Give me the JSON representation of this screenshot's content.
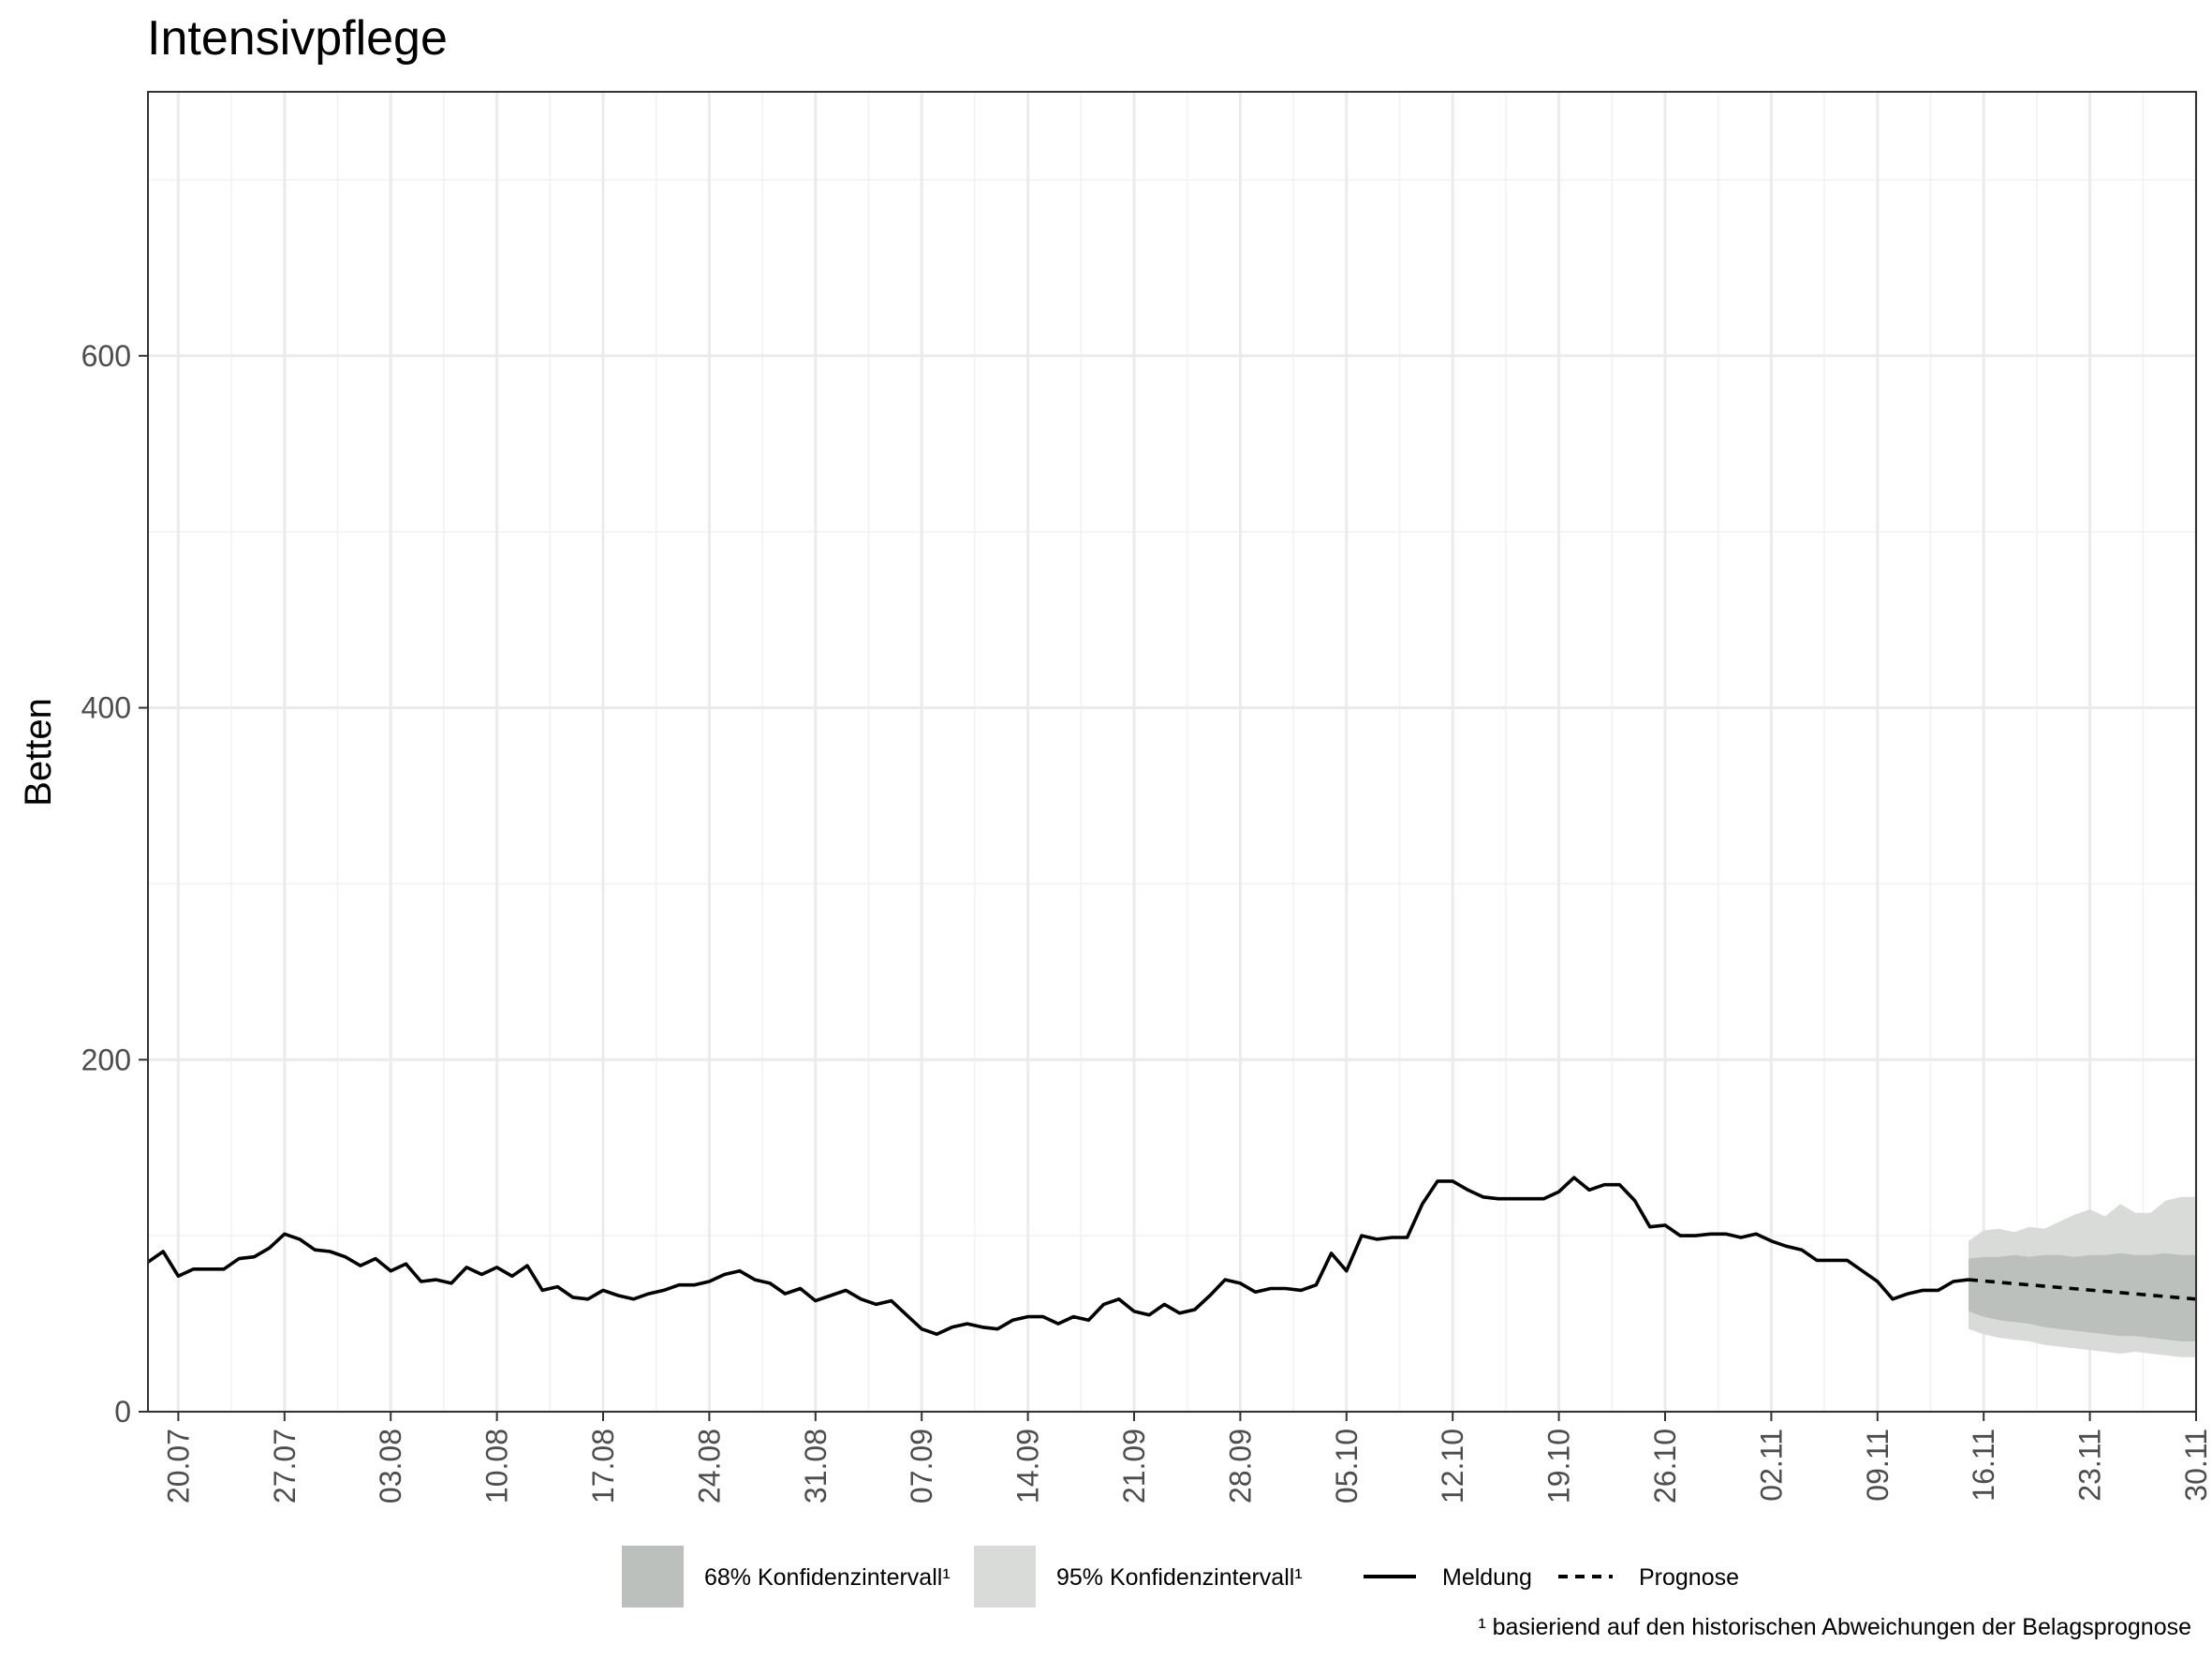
{
  "chart_data": {
    "type": "line",
    "title": "Intensivpflege",
    "xlabel": "",
    "ylabel": "Betten",
    "ylim": [
      0,
      750
    ],
    "xlim": [
      "2020-07-18",
      "2020-11-30"
    ],
    "y_ticks": [
      0,
      200,
      400,
      600
    ],
    "x_ticks": [
      {
        "date": "2020-07-20",
        "label": "20.07"
      },
      {
        "date": "2020-07-27",
        "label": "27.07"
      },
      {
        "date": "2020-08-03",
        "label": "03.08"
      },
      {
        "date": "2020-08-10",
        "label": "10.08"
      },
      {
        "date": "2020-08-17",
        "label": "17.08"
      },
      {
        "date": "2020-08-24",
        "label": "24.08"
      },
      {
        "date": "2020-08-31",
        "label": "31.08"
      },
      {
        "date": "2020-09-07",
        "label": "07.09"
      },
      {
        "date": "2020-09-14",
        "label": "14.09"
      },
      {
        "date": "2020-09-21",
        "label": "21.09"
      },
      {
        "date": "2020-09-28",
        "label": "28.09"
      },
      {
        "date": "2020-10-05",
        "label": "05.10"
      },
      {
        "date": "2020-10-12",
        "label": "12.10"
      },
      {
        "date": "2020-10-19",
        "label": "19.10"
      },
      {
        "date": "2020-10-26",
        "label": "26.10"
      },
      {
        "date": "2020-11-02",
        "label": "02.11"
      },
      {
        "date": "2020-11-09",
        "label": "09.11"
      },
      {
        "date": "2020-11-16",
        "label": "16.11"
      },
      {
        "date": "2020-11-23",
        "label": "23.11"
      },
      {
        "date": "2020-11-30",
        "label": "30.11"
      }
    ],
    "grid": true,
    "legend_position": "bottom",
    "colors": {
      "ci68": "#bbc0bc",
      "ci95": "#d9dbd9",
      "line": "#000000",
      "grid_major": "#ebebeb",
      "grid_minor": "#f2f2f2"
    },
    "legend": {
      "ci68": "68% Konfidenzintervall¹",
      "ci95": "95% Konfidenzintervall¹",
      "meldung": "Meldung",
      "prognose": "Prognose"
    },
    "footnote": "¹ basieriend auf den historischen Abweichungen der Belagsprognose",
    "series": [
      {
        "name": "Meldung",
        "x": [
          "2020-07-18",
          "2020-07-19",
          "2020-07-20",
          "2020-07-21",
          "2020-07-22",
          "2020-07-23",
          "2020-07-24",
          "2020-07-25",
          "2020-07-26",
          "2020-07-27",
          "2020-07-28",
          "2020-07-29",
          "2020-07-30",
          "2020-07-31",
          "2020-08-01",
          "2020-08-02",
          "2020-08-03",
          "2020-08-04",
          "2020-08-05",
          "2020-08-06",
          "2020-08-07",
          "2020-08-08",
          "2020-08-09",
          "2020-08-10",
          "2020-08-11",
          "2020-08-12",
          "2020-08-13",
          "2020-08-14",
          "2020-08-15",
          "2020-08-16",
          "2020-08-17",
          "2020-08-18",
          "2020-08-19",
          "2020-08-20",
          "2020-08-21",
          "2020-08-22",
          "2020-08-23",
          "2020-08-24",
          "2020-08-25",
          "2020-08-26",
          "2020-08-27",
          "2020-08-28",
          "2020-08-29",
          "2020-08-30",
          "2020-08-31",
          "2020-09-01",
          "2020-09-02",
          "2020-09-03",
          "2020-09-04",
          "2020-09-05",
          "2020-09-06",
          "2020-09-07",
          "2020-09-08",
          "2020-09-09",
          "2020-09-10",
          "2020-09-11",
          "2020-09-12",
          "2020-09-13",
          "2020-09-14",
          "2020-09-15",
          "2020-09-16",
          "2020-09-17",
          "2020-09-18",
          "2020-09-19",
          "2020-09-20",
          "2020-09-21",
          "2020-09-22",
          "2020-09-23",
          "2020-09-24",
          "2020-09-25",
          "2020-09-26",
          "2020-09-27",
          "2020-09-28",
          "2020-09-29",
          "2020-09-30",
          "2020-10-01",
          "2020-10-02",
          "2020-10-03",
          "2020-10-04",
          "2020-10-05",
          "2020-10-06",
          "2020-10-07",
          "2020-10-08",
          "2020-10-09",
          "2020-10-10",
          "2020-10-11",
          "2020-10-12",
          "2020-10-13",
          "2020-10-14",
          "2020-10-15",
          "2020-10-16",
          "2020-10-17",
          "2020-10-18",
          "2020-10-19",
          "2020-10-20",
          "2020-10-21",
          "2020-10-22",
          "2020-10-23",
          "2020-10-24",
          "2020-10-25",
          "2020-10-26",
          "2020-10-27",
          "2020-10-28",
          "2020-10-29",
          "2020-10-30",
          "2020-10-31",
          "2020-11-01",
          "2020-11-02",
          "2020-11-03",
          "2020-11-04",
          "2020-11-05",
          "2020-11-06",
          "2020-11-07",
          "2020-11-08",
          "2020-11-09",
          "2020-11-10",
          "2020-11-11",
          "2020-11-12",
          "2020-11-13",
          "2020-11-14",
          "2020-11-15"
        ],
        "values": [
          85,
          91,
          77,
          81,
          81,
          81,
          87,
          88,
          93,
          101,
          98,
          92,
          91,
          88,
          83,
          87,
          80,
          84,
          74,
          75,
          73,
          82,
          78,
          82,
          77,
          83,
          69,
          71,
          65,
          64,
          69,
          66,
          64,
          67,
          69,
          72,
          72,
          74,
          78,
          80,
          75,
          73,
          67,
          70,
          63,
          66,
          69,
          64,
          61,
          63,
          55,
          47,
          44,
          48,
          50,
          48,
          47,
          52,
          54,
          54,
          50,
          54,
          52,
          61,
          64,
          57,
          55,
          61,
          56,
          58,
          66,
          75,
          73,
          68,
          70,
          70,
          69,
          72,
          90,
          80,
          100,
          98,
          99,
          99,
          118,
          131,
          131,
          126,
          122,
          121,
          121,
          121,
          121,
          125,
          133,
          126,
          129,
          129,
          120,
          105,
          106,
          100,
          100,
          101,
          101,
          99,
          101,
          97,
          94,
          92,
          86,
          86,
          86,
          80,
          74,
          64,
          67,
          69,
          69,
          74,
          75
        ]
      },
      {
        "name": "Prognose",
        "x": [
          "2020-11-15",
          "2020-11-30"
        ],
        "values": [
          75,
          64
        ]
      }
    ],
    "forecast_band": {
      "x": [
        "2020-11-15",
        "2020-11-16",
        "2020-11-17",
        "2020-11-18",
        "2020-11-19",
        "2020-11-20",
        "2020-11-21",
        "2020-11-22",
        "2020-11-23",
        "2020-11-24",
        "2020-11-25",
        "2020-11-26",
        "2020-11-27",
        "2020-11-28",
        "2020-11-29",
        "2020-11-30"
      ],
      "ci68_lower": [
        57,
        54,
        52,
        51,
        50,
        48,
        47,
        46,
        45,
        44,
        43,
        43,
        42,
        41,
        40,
        40
      ],
      "ci68_upper": [
        87,
        88,
        88,
        89,
        88,
        89,
        89,
        88,
        89,
        89,
        90,
        89,
        89,
        90,
        89,
        89
      ],
      "ci95_lower": [
        47,
        44,
        42,
        41,
        40,
        38,
        37,
        36,
        35,
        34,
        33,
        34,
        33,
        32,
        31,
        31
      ],
      "ci95_upper": [
        97,
        103,
        104,
        102,
        105,
        104,
        108,
        112,
        115,
        111,
        118,
        113,
        113,
        120,
        122,
        122
      ]
    }
  }
}
